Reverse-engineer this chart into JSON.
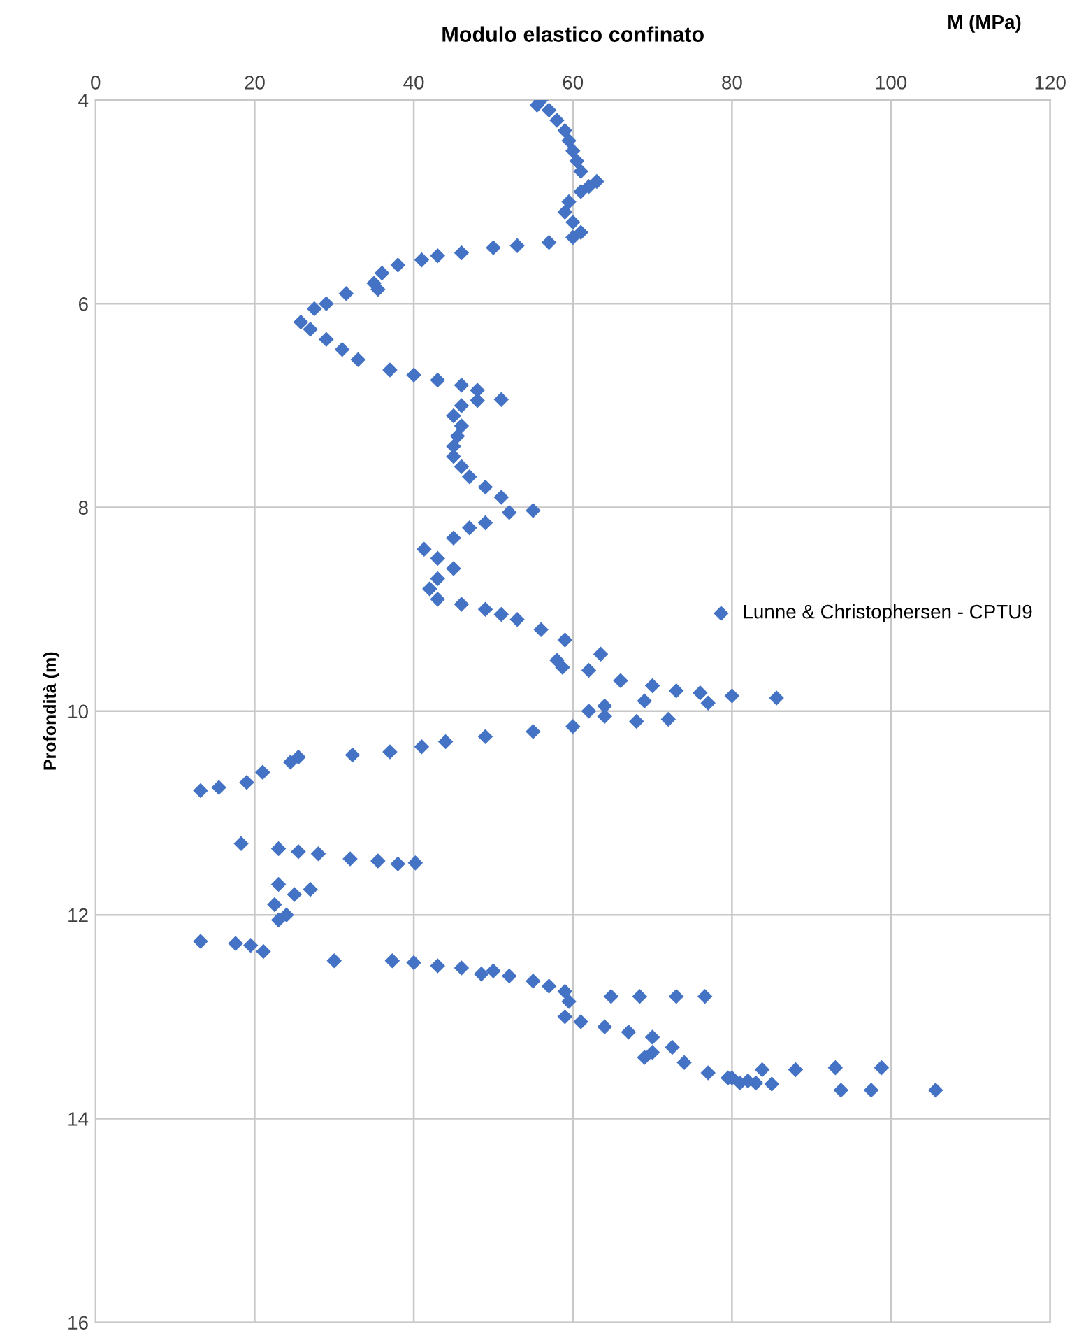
{
  "chart_data": {
    "type": "scatter",
    "title": "Modulo elastico confinato",
    "xlabel": "M (MPa)",
    "ylabel": "Profondità (m)",
    "xlim": [
      0,
      120
    ],
    "xticks": [
      0,
      20,
      40,
      60,
      80,
      100,
      120
    ],
    "ylim": [
      16,
      4
    ],
    "yticks": [
      4,
      6,
      8,
      10,
      12,
      14,
      16
    ],
    "grid": true,
    "legend": "right",
    "marker": "diamond",
    "series": [
      {
        "name": "Lunne & Christophersen - CPTU9",
        "color": "#4472c4",
        "x": [
          56,
          55.5,
          57,
          58,
          59,
          59.5,
          60,
          60.5,
          61,
          63,
          62,
          61,
          59.5,
          59,
          60,
          61,
          60,
          57,
          53,
          50,
          46,
          43,
          41,
          38,
          36,
          35,
          35.5,
          31.5,
          29,
          27.5,
          25.8,
          27,
          29,
          31,
          33,
          37,
          40,
          43,
          46,
          48,
          51,
          48,
          46,
          45,
          46,
          45.5,
          45,
          45,
          46,
          47,
          49,
          51,
          55,
          52,
          49,
          47,
          45,
          41.3,
          43,
          45,
          43,
          42,
          43,
          46,
          49,
          51,
          53,
          56,
          59,
          63.5,
          58,
          58.7,
          62,
          66,
          70,
          73,
          76,
          80,
          85.6,
          69,
          77,
          64,
          62,
          64,
          72,
          68,
          60,
          55,
          49,
          44,
          41,
          37,
          32.3,
          25.5,
          24.5,
          21,
          19,
          15.5,
          13.2,
          18.3,
          23,
          25.5,
          28,
          32,
          35.5,
          38,
          40.2,
          23,
          27,
          25,
          22.5,
          24,
          23,
          13.2,
          17.6,
          19.5,
          21.1,
          30,
          37.3,
          40,
          43,
          46,
          48.5,
          50,
          52,
          55,
          57,
          59,
          59.5,
          59,
          61,
          64.8,
          68.4,
          73,
          76.6,
          64,
          67,
          70,
          72.5,
          70,
          69,
          74,
          77,
          80,
          83,
          83.8,
          88,
          93,
          98.8,
          79.5,
          81,
          82,
          85,
          93.7,
          97.5,
          105.6
        ],
        "values": [
          4.0,
          4.05,
          4.1,
          4.2,
          4.3,
          4.4,
          4.5,
          4.6,
          4.7,
          4.8,
          4.85,
          4.9,
          5.0,
          5.1,
          5.2,
          5.3,
          5.35,
          5.4,
          5.43,
          5.45,
          5.5,
          5.53,
          5.57,
          5.62,
          5.7,
          5.8,
          5.86,
          5.9,
          6.0,
          6.05,
          6.18,
          6.25,
          6.35,
          6.45,
          6.55,
          6.65,
          6.7,
          6.75,
          6.8,
          6.85,
          6.94,
          6.95,
          7.0,
          7.1,
          7.2,
          7.3,
          7.4,
          7.5,
          7.6,
          7.7,
          7.8,
          7.9,
          8.03,
          8.05,
          8.15,
          8.2,
          8.3,
          8.41,
          8.5,
          8.6,
          8.7,
          8.8,
          8.9,
          8.95,
          9.0,
          9.05,
          9.1,
          9.2,
          9.3,
          9.44,
          9.5,
          9.57,
          9.6,
          9.7,
          9.75,
          9.8,
          9.82,
          9.85,
          9.87,
          9.9,
          9.92,
          9.95,
          10.0,
          10.05,
          10.08,
          10.1,
          10.15,
          10.2,
          10.25,
          10.3,
          10.35,
          10.4,
          10.43,
          10.45,
          10.5,
          10.6,
          10.7,
          10.75,
          10.78,
          11.3,
          11.35,
          11.38,
          11.4,
          11.45,
          11.47,
          11.5,
          11.49,
          11.7,
          11.75,
          11.8,
          11.9,
          12.0,
          12.05,
          12.26,
          12.28,
          12.3,
          12.36,
          12.45,
          12.45,
          12.47,
          12.5,
          12.52,
          12.58,
          12.55,
          12.6,
          12.65,
          12.7,
          12.75,
          12.85,
          13.0,
          13.05,
          12.8,
          12.8,
          12.8,
          12.8,
          13.1,
          13.15,
          13.2,
          13.3,
          13.35,
          13.4,
          13.45,
          13.55,
          13.6,
          13.65,
          13.52,
          13.52,
          13.5,
          13.5,
          13.6,
          13.65,
          13.63,
          13.66,
          13.72,
          13.72,
          13.72
        ]
      }
    ]
  }
}
